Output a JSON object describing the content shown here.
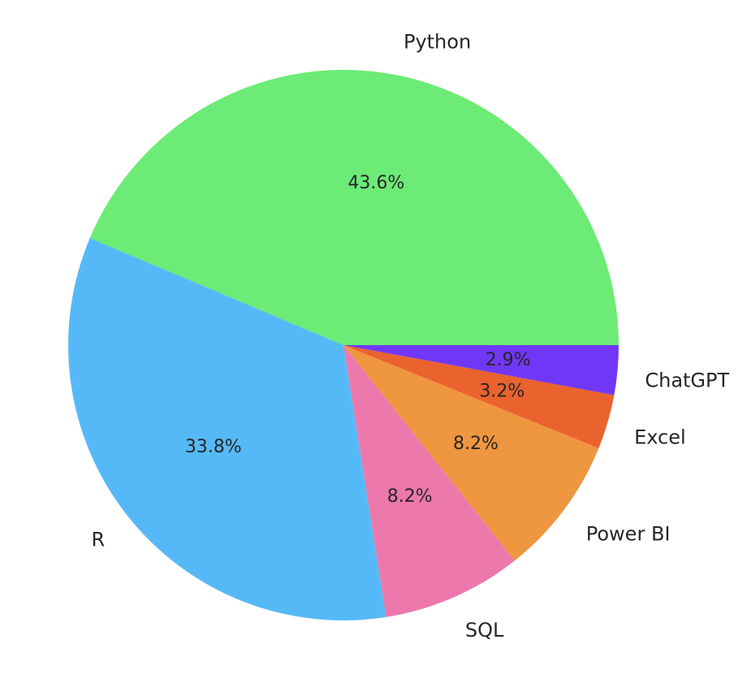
{
  "chart_data": {
    "type": "pie",
    "title": "",
    "start_angle_deg": 0,
    "direction": "counterclockwise",
    "slices": [
      {
        "label": "Python",
        "value": 43.6,
        "pct_label": "43.6%",
        "color": "#6ceb76"
      },
      {
        "label": "R",
        "value": 33.8,
        "pct_label": "33.8%",
        "color": "#56b9f7"
      },
      {
        "label": "SQL",
        "value": 8.2,
        "pct_label": "8.2%",
        "color": "#ed78ab"
      },
      {
        "label": "Power BI",
        "value": 8.2,
        "pct_label": "8.2%",
        "color": "#ef9640"
      },
      {
        "label": "Excel",
        "value": 3.2,
        "pct_label": "3.2%",
        "color": "#ea622e"
      },
      {
        "label": "ChatGPT",
        "value": 2.9,
        "pct_label": "2.9%",
        "color": "#7137f7"
      }
    ]
  }
}
